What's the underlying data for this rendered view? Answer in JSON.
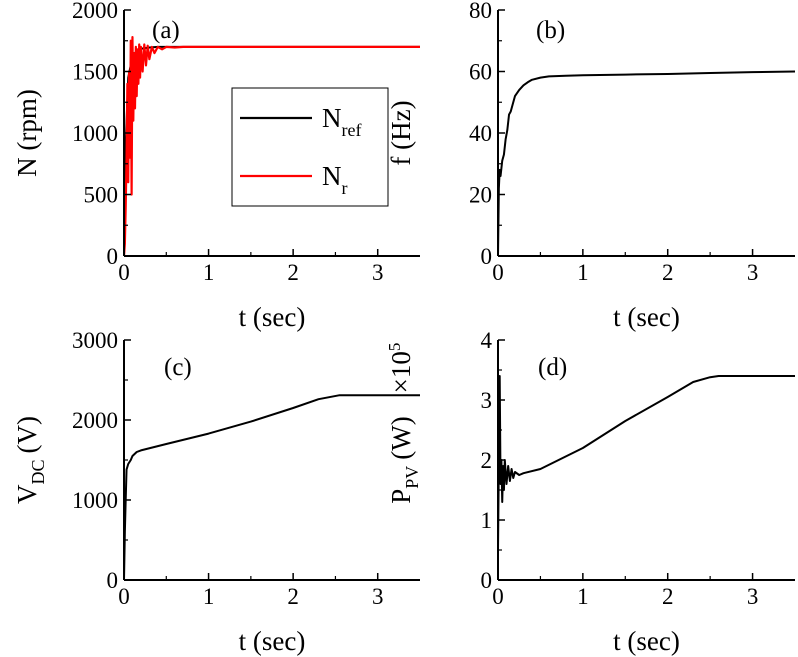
{
  "chart_data": [
    {
      "id": "a",
      "type": "line",
      "panel_label": "(a)",
      "xlabel": "t (sec)",
      "ylabel": "N (rpm)",
      "xlim": [
        0,
        3.5
      ],
      "ylim": [
        0,
        2000
      ],
      "xticks": [
        0,
        1,
        2,
        3
      ],
      "yticks": [
        0,
        500,
        1000,
        1500,
        2000
      ],
      "legend_position": "center",
      "series": [
        {
          "name": "N_ref",
          "label_main": "N",
          "label_sub": "ref",
          "color": "#000000",
          "x": [
            0,
            0.02,
            0.05,
            0.1,
            0.15,
            0.2,
            0.3,
            0.4,
            0.6,
            0.8,
            1,
            2,
            3,
            3.5
          ],
          "y": [
            0,
            900,
            1450,
            1620,
            1670,
            1685,
            1695,
            1700,
            1700,
            1700,
            1700,
            1700,
            1700,
            1700
          ]
        },
        {
          "name": "N_r",
          "label_main": "N",
          "label_sub": "r",
          "color": "#ff0000",
          "x": [
            0,
            0.01,
            0.02,
            0.03,
            0.04,
            0.05,
            0.06,
            0.07,
            0.08,
            0.09,
            0.1,
            0.11,
            0.12,
            0.13,
            0.14,
            0.15,
            0.16,
            0.17,
            0.18,
            0.19,
            0.2,
            0.22,
            0.24,
            0.26,
            0.28,
            0.3,
            0.33,
            0.36,
            0.4,
            0.45,
            0.5,
            0.6,
            0.7,
            0.8,
            1,
            2,
            3,
            3.5
          ],
          "y": [
            0,
            100,
            400,
            800,
            1400,
            600,
            1500,
            800,
            1750,
            500,
            1780,
            1100,
            1650,
            1200,
            1700,
            1300,
            1680,
            1400,
            1720,
            1450,
            1700,
            1500,
            1720,
            1550,
            1710,
            1600,
            1700,
            1650,
            1700,
            1680,
            1700,
            1695,
            1700,
            1700,
            1700,
            1700,
            1700,
            1700
          ]
        }
      ]
    },
    {
      "id": "b",
      "type": "line",
      "panel_label": "(b)",
      "xlabel": "t (sec)",
      "ylabel": "f (Hz)",
      "xlim": [
        0,
        3.5
      ],
      "ylim": [
        0,
        80
      ],
      "xticks": [
        0,
        1,
        2,
        3
      ],
      "yticks": [
        0,
        20,
        40,
        60,
        80
      ],
      "series": [
        {
          "color": "#000000",
          "x": [
            0,
            0.01,
            0.02,
            0.03,
            0.05,
            0.07,
            0.09,
            0.11,
            0.13,
            0.15,
            0.18,
            0.2,
            0.25,
            0.3,
            0.35,
            0.4,
            0.5,
            0.6,
            0.8,
            1,
            1.5,
            2,
            2.5,
            3,
            3.5
          ],
          "y": [
            0,
            22,
            28,
            26,
            31,
            33,
            38,
            41,
            46,
            47,
            50,
            52,
            54,
            55.5,
            56.5,
            57.3,
            58,
            58.4,
            58.6,
            58.8,
            59,
            59.2,
            59.5,
            59.8,
            60
          ]
        }
      ]
    },
    {
      "id": "c",
      "type": "line",
      "panel_label": "(c)",
      "xlabel": "t (sec)",
      "ylabel_main": "V",
      "ylabel_sub": "DC",
      "ylabel_unit": "(V)",
      "xlim": [
        0,
        3.5
      ],
      "ylim": [
        0,
        3000
      ],
      "xticks": [
        0,
        1,
        2,
        3
      ],
      "yticks": [
        0,
        1000,
        2000,
        3000
      ],
      "series": [
        {
          "color": "#000000",
          "x": [
            0,
            0.01,
            0.02,
            0.03,
            0.05,
            0.08,
            0.1,
            0.15,
            0.2,
            0.5,
            1,
            1.5,
            2,
            2.3,
            2.55,
            2.6,
            3,
            3.5
          ],
          "y": [
            0,
            600,
            1000,
            1380,
            1450,
            1500,
            1550,
            1600,
            1620,
            1700,
            1830,
            1980,
            2150,
            2260,
            2310,
            2310,
            2310,
            2310
          ]
        }
      ]
    },
    {
      "id": "d",
      "type": "line",
      "panel_label": "(d)",
      "xlabel": "t (sec)",
      "ylabel_main": "P",
      "ylabel_sub": "PV",
      "ylabel_unit": "(W)",
      "multiplier_base": "×10",
      "multiplier_exp": "5",
      "xlim": [
        0,
        3.5
      ],
      "ylim": [
        0,
        4
      ],
      "xticks": [
        0,
        1,
        2,
        3
      ],
      "yticks": [
        0,
        1,
        2,
        3,
        4
      ],
      "series": [
        {
          "color": "#000000",
          "x": [
            0,
            0.01,
            0.02,
            0.03,
            0.04,
            0.05,
            0.06,
            0.07,
            0.08,
            0.1,
            0.12,
            0.14,
            0.16,
            0.18,
            0.2,
            0.25,
            0.3,
            0.5,
            1,
            1.5,
            2,
            2.3,
            2.5,
            2.6,
            3,
            3.5
          ],
          "y": [
            0.5,
            2.0,
            3.4,
            1.6,
            2.0,
            1.3,
            1.9,
            1.5,
            2.0,
            1.6,
            1.9,
            1.65,
            1.85,
            1.7,
            1.8,
            1.75,
            1.78,
            1.85,
            2.2,
            2.65,
            3.05,
            3.3,
            3.38,
            3.4,
            3.4,
            3.4
          ]
        }
      ]
    }
  ]
}
